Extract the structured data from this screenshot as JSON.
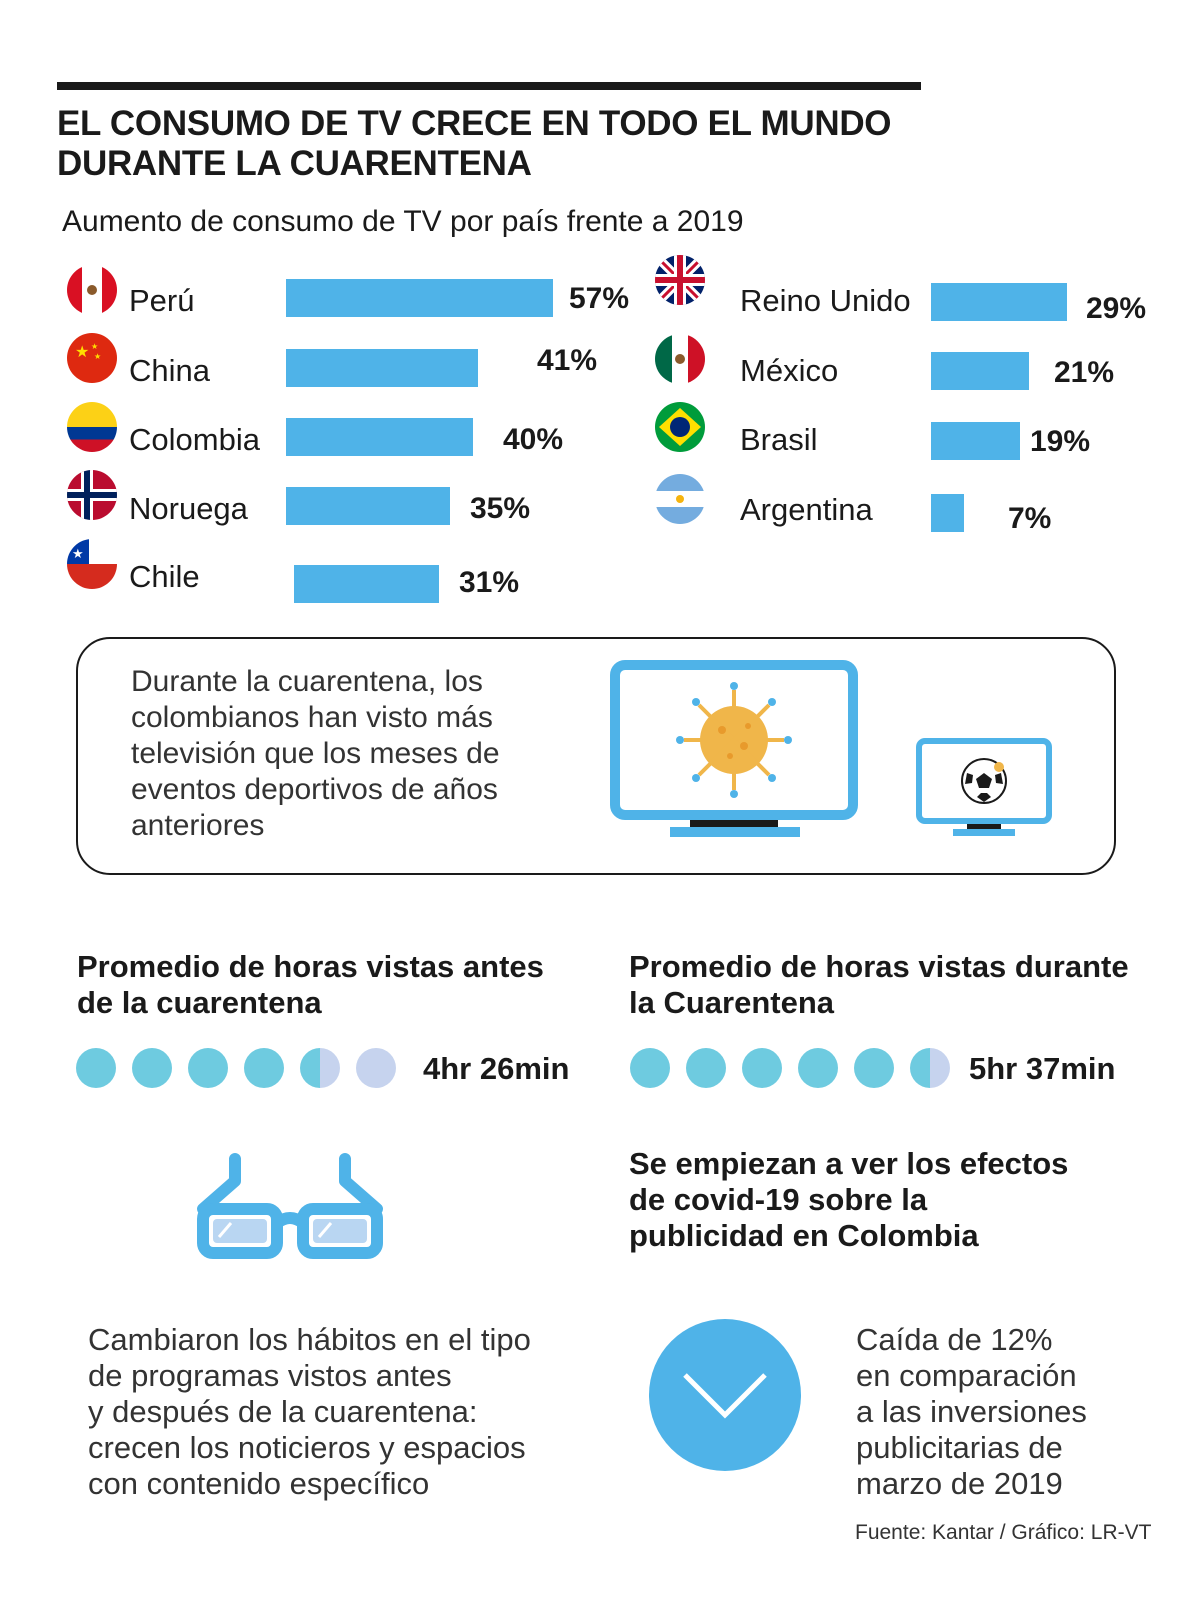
{
  "title_line1": "EL CONSUMO DE TV CRECE EN TODO EL MUNDO",
  "title_line2": "DURANTE LA CUARENTENA",
  "chart_data": {
    "type": "bar",
    "title": "Aumento de consumo de TV por país frente a 2019",
    "categories": [
      "Perú",
      "China",
      "Colombia",
      "Noruega",
      "Chile",
      "Reino Unido",
      "México",
      "Brasil",
      "Argentina"
    ],
    "values": [
      57,
      41,
      40,
      35,
      31,
      29,
      21,
      19,
      7
    ],
    "labels": [
      "57%",
      "41%",
      "40%",
      "35%",
      "31%",
      "29%",
      "21%",
      "19%",
      "7%"
    ],
    "unit": "%",
    "bar_color": "#4fb3e8"
  },
  "flags": [
    "peru-flag-icon",
    "china-flag-icon",
    "colombia-flag-icon",
    "norway-flag-icon",
    "chile-flag-icon",
    "uk-flag-icon",
    "mexico-flag-icon",
    "brazil-flag-icon",
    "argentina-flag-icon"
  ],
  "box_text": "Durante la cuarentena, los colombianos han visto más televisión que los meses de eventos deportivos de años anteriores",
  "before": {
    "heading_line1": "Promedio de horas vistas antes",
    "heading_line2": "de la cuarentena",
    "value": "4hr 26min",
    "filled_dots": 4.5,
    "total_dots": 6
  },
  "during": {
    "heading_line1": "Promedio de horas vistas durante",
    "heading_line2": "la Cuarentena",
    "value": "5hr 37min",
    "filled_dots": 5.5,
    "total_dots": 6
  },
  "effects_heading": [
    "Se empiezan a ver los efectos",
    "de covid-19 sobre la",
    "publicidad en Colombia"
  ],
  "habits_text": [
    "Cambiaron los hábitos en el tipo",
    "de programas vistos antes",
    "y después de la cuarentena:",
    "crecen los noticieros y espacios",
    "con contenido específico"
  ],
  "drop_text": [
    "Caída de 12%",
    "en comparación",
    "a las inversiones",
    "publicitarias de",
    "marzo de 2019"
  ],
  "source": "Fuente: Kantar / Gráfico: LR-VT",
  "colors": {
    "accent": "#4fb3e8",
    "dot_full": "#6ecbe0",
    "dot_empty": "#c6d3ee"
  }
}
